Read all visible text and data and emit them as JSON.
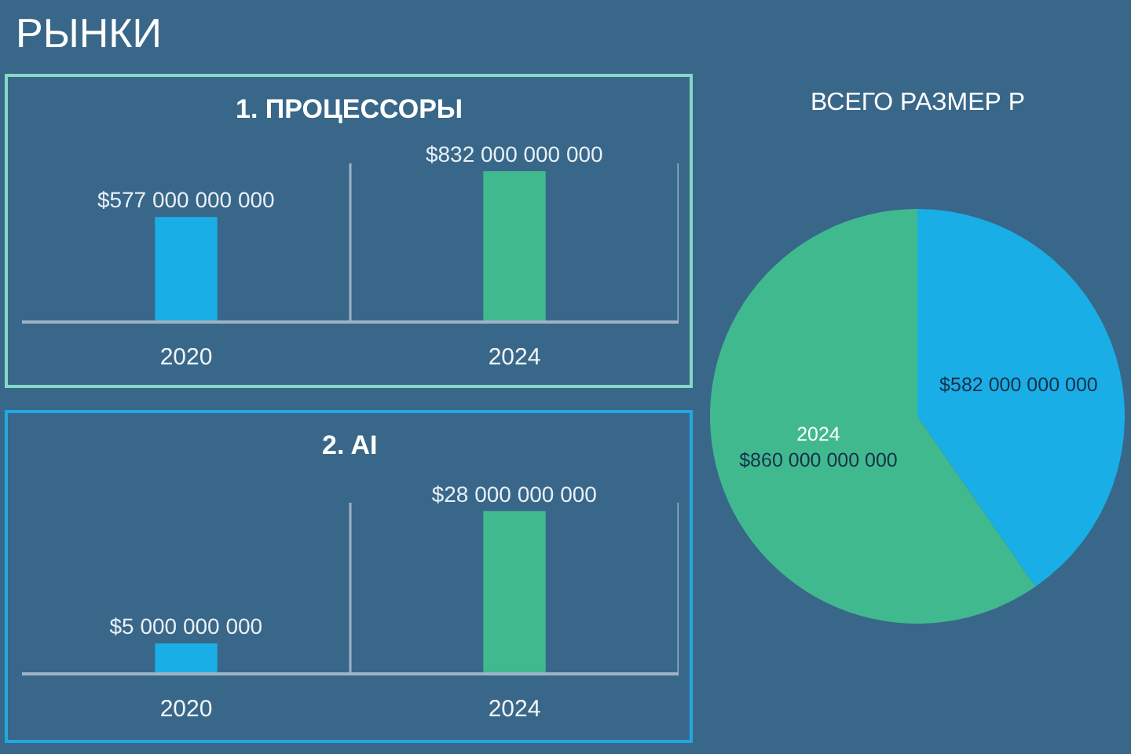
{
  "chart_data": [
    {
      "type": "other",
      "title": "РЫНКИ"
    },
    {
      "type": "bar",
      "title": "1. ПРОЦЕССОРЫ",
      "categories": [
        "2020",
        "2024"
      ],
      "values": [
        577000000000,
        832000000000
      ],
      "colors": [
        "#1aaee6",
        "#41b98f"
      ],
      "value_labels": [
        "$577 000 000 000",
        "$832 000 000 000"
      ],
      "grid": "x",
      "tick_labels": "x"
    },
    {
      "type": "bar",
      "title": "2. AI",
      "categories": [
        "2020",
        "2024"
      ],
      "values": [
        5000000000,
        28000000000
      ],
      "colors": [
        "#1aaee6",
        "#41b98f"
      ],
      "value_labels": [
        "$5 000 000 000",
        "$28 000 000 000"
      ],
      "grid": "x",
      "tick_labels": "x"
    },
    {
      "type": "pie",
      "title": "ВСЕГО РАЗМЕР Р",
      "categories": [
        null,
        "2024"
      ],
      "values": [
        582000000000,
        860000000000
      ],
      "colors": [
        "#1aaee6",
        "#41b98f"
      ],
      "value_labels": [
        "$582 000 000 000",
        "$860 000 000 000"
      ]
    }
  ]
}
